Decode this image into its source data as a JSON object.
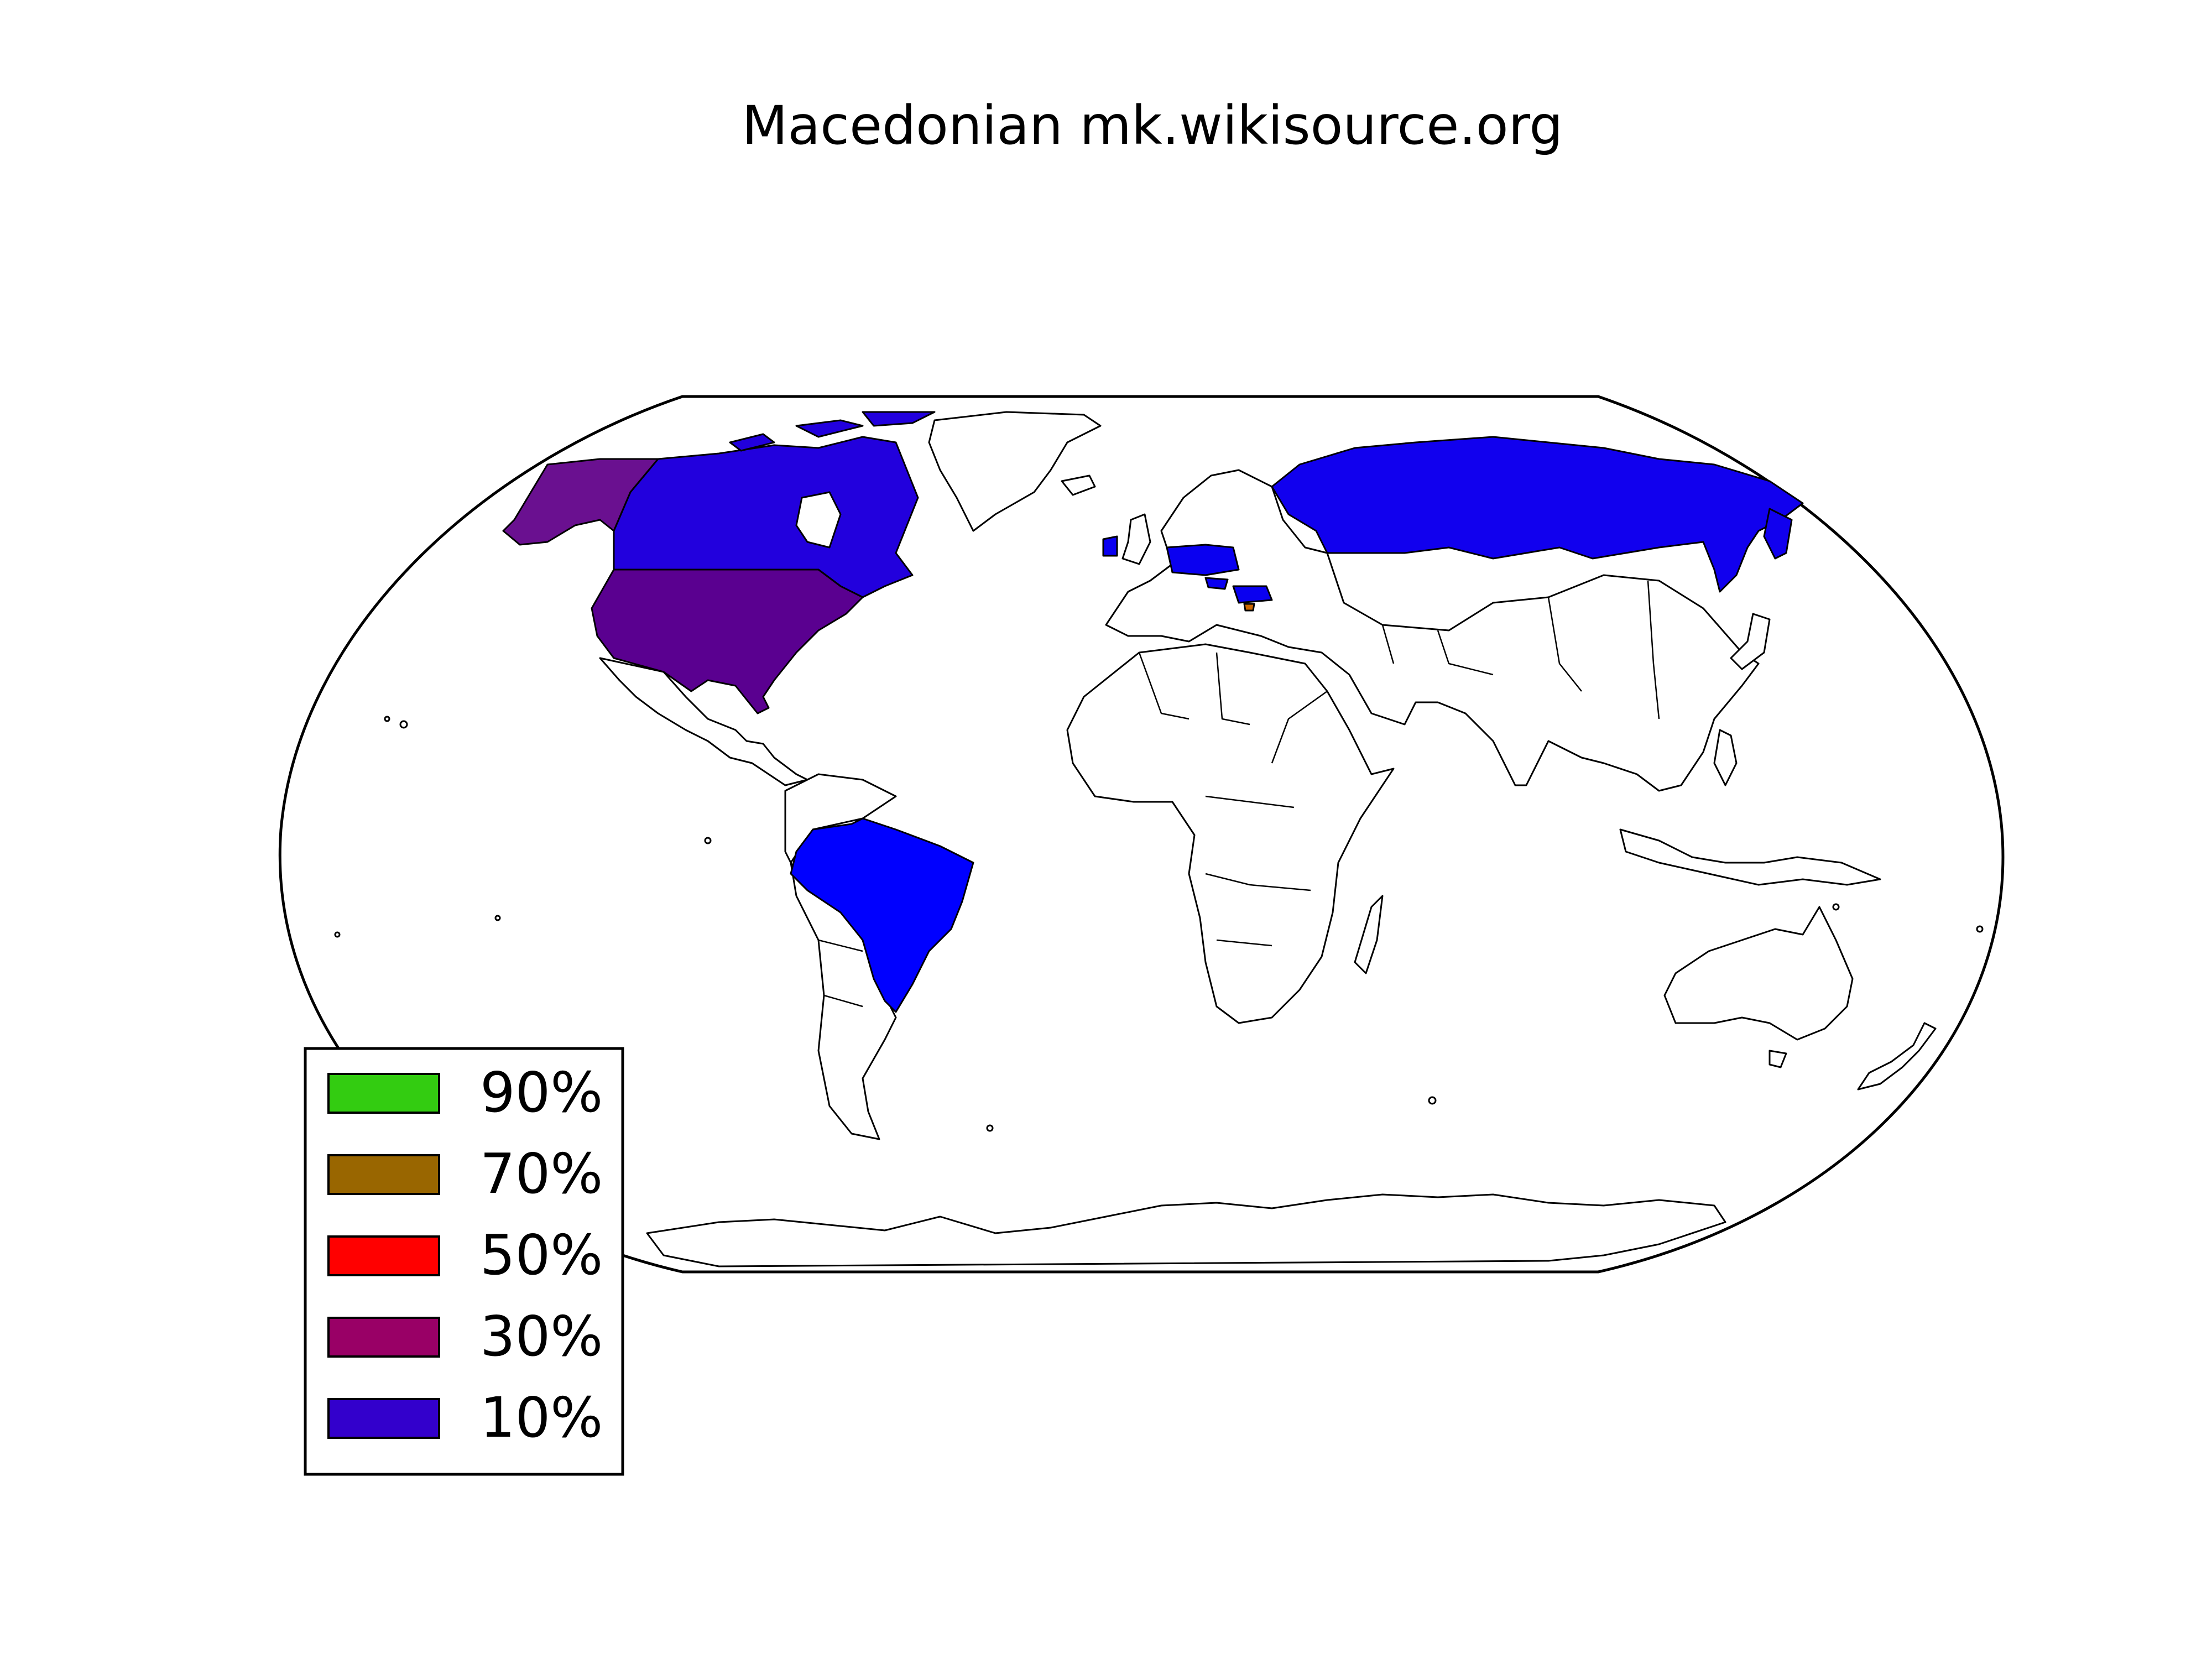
{
  "title": "Macedonian mk.wikisource.org",
  "colors": {
    "c90": "#33cc11",
    "c70": "#996600",
    "c50": "#ff0000",
    "c30": "#990066",
    "c10": "#3300cc",
    "usa": "#5a0090",
    "alaska": "#6a1090",
    "canada": "#2200dd",
    "brazil": "#0000ff",
    "russia": "#1100ee",
    "europe_blue": "#0a00f0",
    "macedonia": "#cc6600"
  },
  "legend": {
    "items": [
      {
        "label": "90%",
        "color": "#33cc11"
      },
      {
        "label": "70%",
        "color": "#996600"
      },
      {
        "label": "50%",
        "color": "#ff0000"
      },
      {
        "label": "30%",
        "color": "#990066"
      },
      {
        "label": "10%",
        "color": "#3300cc"
      }
    ]
  },
  "chart_data": {
    "type": "choropleth",
    "title": "Macedonian mk.wikisource.org",
    "legend_placement": "lower-left",
    "legend": [
      "90%",
      "70%",
      "50%",
      "30%",
      "10%"
    ],
    "regions": [
      {
        "name": "United States",
        "color": "#5a0090"
      },
      {
        "name": "Canada",
        "color": "#2200dd"
      },
      {
        "name": "Brazil",
        "color": "#0000ff"
      },
      {
        "name": "Russia",
        "color": "#1100ee"
      },
      {
        "name": "Ireland",
        "color": "#0a00f0"
      },
      {
        "name": "Germany",
        "color": "#0a00f0"
      },
      {
        "name": "Poland",
        "color": "#0a00f0"
      },
      {
        "name": "Bulgaria",
        "color": "#0a00f0"
      },
      {
        "name": "Hungary",
        "color": "#0a00f0"
      },
      {
        "name": "Macedonia",
        "color": "#cc6600"
      }
    ]
  }
}
